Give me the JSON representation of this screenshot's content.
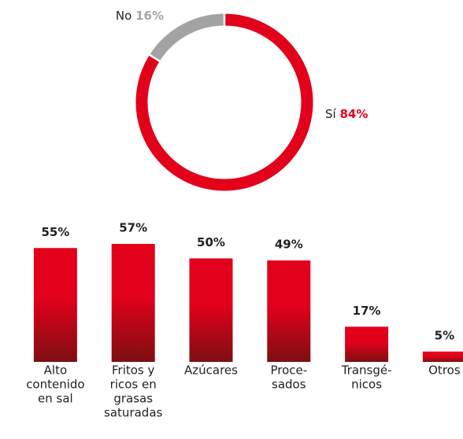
{
  "chart_data": [
    {
      "type": "donut",
      "categories": [
        "Sí",
        "No"
      ],
      "values": [
        84,
        16
      ],
      "value_labels": [
        "84%",
        "16%"
      ],
      "colors": [
        "#e2001a",
        "#a3a3a3"
      ]
    },
    {
      "type": "bar",
      "categories": [
        [
          "Alto",
          "contenido",
          "en sal"
        ],
        [
          "Fritos y",
          "ricos en",
          "grasas",
          "saturadas"
        ],
        [
          "Azúcares"
        ],
        [
          "Proce-",
          "sados"
        ],
        [
          "Transgé-",
          "nicos"
        ],
        [
          "Otros"
        ]
      ],
      "values": [
        55,
        57,
        50,
        49,
        17,
        5
      ],
      "value_labels": [
        "55%",
        "57%",
        "50%",
        "49%",
        "17%",
        "5%"
      ],
      "color": "#e2001a",
      "gradient_end": "#7d0f12"
    }
  ]
}
